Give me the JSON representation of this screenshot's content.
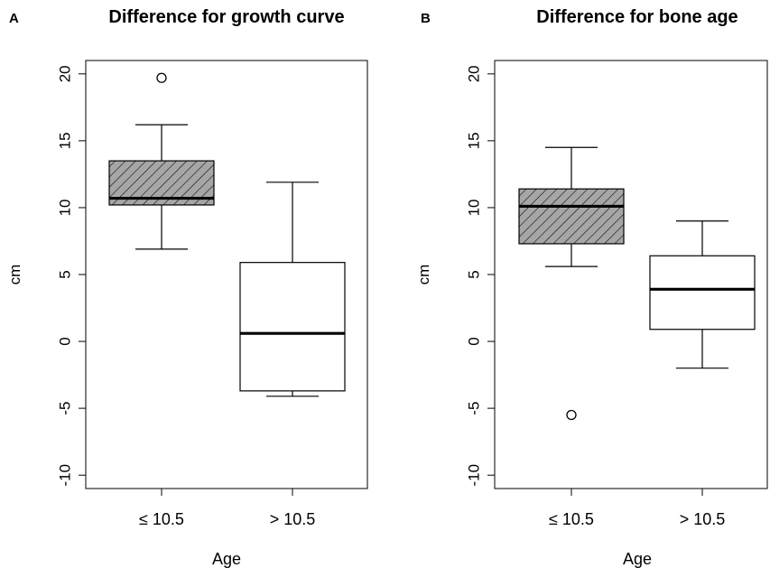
{
  "chart_data": [
    {
      "type": "boxplot",
      "panel_label": "A",
      "title": "Difference for growth curve",
      "xlabel": "Age",
      "ylabel": "cm",
      "ylim": [
        -11,
        21
      ],
      "yticks": [
        -10,
        -5,
        0,
        5,
        10,
        15,
        20
      ],
      "yticklabels": [
        "-10",
        "-5",
        "0",
        "5",
        "10",
        "15",
        "20"
      ],
      "categories": [
        "≤ 10.5",
        "> 10.5"
      ],
      "boxes": [
        {
          "category": "≤ 10.5",
          "whisker_low": 6.9,
          "q1": 10.2,
          "median": 10.7,
          "q3": 13.5,
          "whisker_high": 16.2,
          "outliers": [
            19.7
          ],
          "fill": "hatched"
        },
        {
          "category": "> 10.5",
          "whisker_low": -4.1,
          "q1": -3.7,
          "median": 0.6,
          "q3": 5.9,
          "whisker_high": 11.9,
          "outliers": [],
          "fill": "white"
        }
      ],
      "grid": false
    },
    {
      "type": "boxplot",
      "panel_label": "B",
      "title": "Difference for bone age",
      "xlabel": "Age",
      "ylabel": "cm",
      "ylim": [
        -11,
        21
      ],
      "yticks": [
        -10,
        -5,
        0,
        5,
        10,
        15,
        20
      ],
      "yticklabels": [
        "-10",
        "-5",
        "0",
        "5",
        "10",
        "15",
        "20"
      ],
      "categories": [
        "≤ 10.5",
        "> 10.5"
      ],
      "boxes": [
        {
          "category": "≤ 10.5",
          "whisker_low": 5.6,
          "q1": 7.3,
          "median": 10.1,
          "q3": 11.4,
          "whisker_high": 14.5,
          "outliers": [
            -5.5
          ],
          "fill": "hatched"
        },
        {
          "category": "> 10.5",
          "whisker_low": -2.0,
          "q1": 0.9,
          "median": 3.9,
          "q3": 6.4,
          "whisker_high": 9.0,
          "outliers": [],
          "fill": "white"
        }
      ],
      "grid": false
    }
  ],
  "colors": {
    "hatched_fill": "#a6a6a6",
    "line": "#000000",
    "background": "#ffffff"
  }
}
